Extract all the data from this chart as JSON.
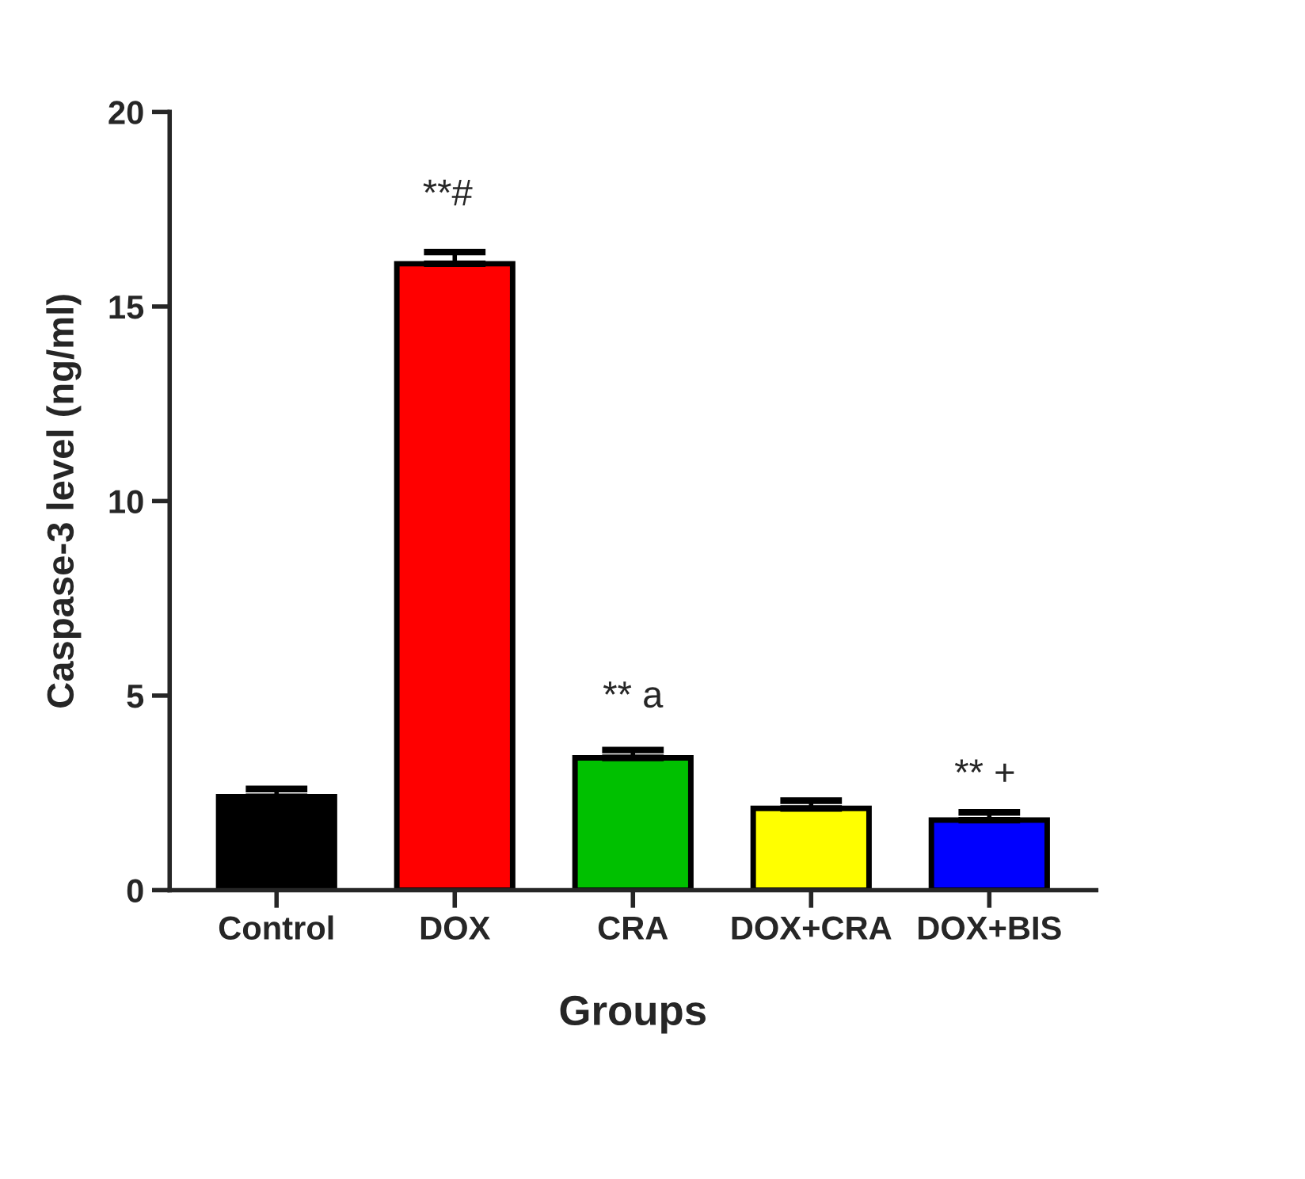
{
  "chart_data": {
    "type": "bar",
    "xlabel": "Groups",
    "ylabel": "Caspase-3 level (ng/ml)",
    "categories": [
      "Control",
      "DOX",
      "CRA",
      "DOX+CRA",
      "DOX+BIS"
    ],
    "values": [
      2.4,
      16.1,
      3.4,
      2.1,
      1.8
    ],
    "errors": [
      [
        2.4,
        2.6
      ],
      [
        16.1,
        16.4
      ],
      [
        3.4,
        3.6
      ],
      [
        2.1,
        2.3
      ],
      [
        1.8,
        2.0
      ]
    ],
    "colors": [
      "#000000",
      "#ff0000",
      "#00c000",
      "#ffff00",
      "#0000ff"
    ],
    "ylim": [
      0,
      20
    ],
    "yticks": [
      0,
      5,
      10,
      15,
      20
    ],
    "grid": false,
    "legend": false,
    "annotations": [
      "**#",
      "** a",
      "** +"
    ]
  }
}
